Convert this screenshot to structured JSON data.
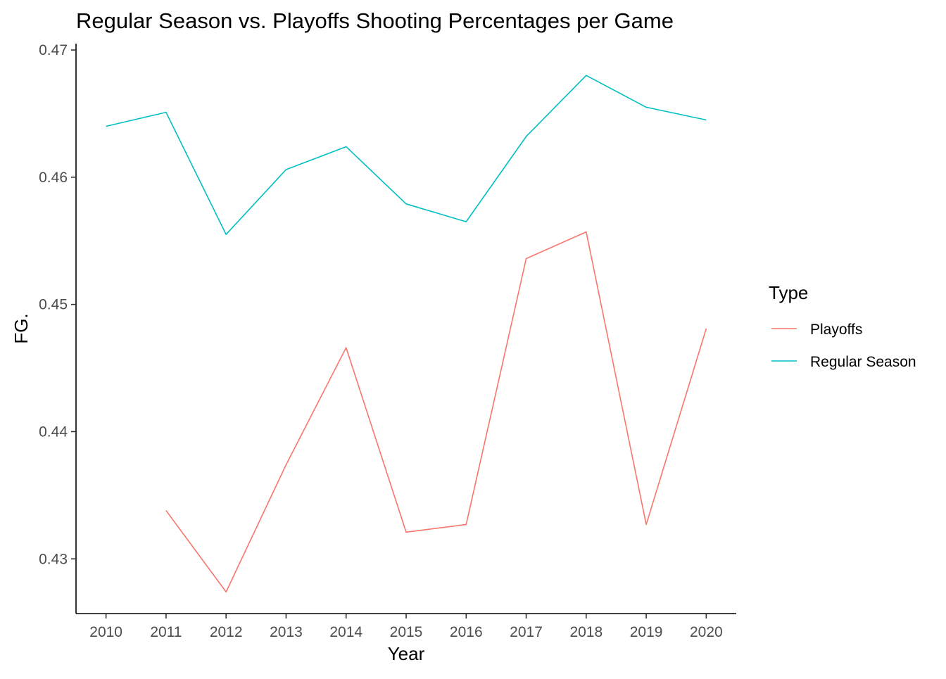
{
  "chart_data": {
    "type": "line",
    "title": "Regular Season vs. Playoffs Shooting Percentages per Game",
    "xlabel": "Year",
    "ylabel": "FG.",
    "x": [
      2010,
      2011,
      2012,
      2013,
      2014,
      2015,
      2016,
      2017,
      2018,
      2019,
      2020
    ],
    "xlim": [
      2009.5,
      2020.5
    ],
    "ylim": [
      0.4257,
      0.4705
    ],
    "yticks": [
      0.43,
      0.44,
      0.45,
      0.46,
      0.47
    ],
    "ytick_labels": [
      "0.43",
      "0.44",
      "0.45",
      "0.46",
      "0.47"
    ],
    "grid": false,
    "legend": {
      "title": "Type",
      "position": "right"
    },
    "series": [
      {
        "name": "Playoffs",
        "color": "#F8766D",
        "values": [
          null,
          0.4338,
          0.4274,
          0.4374,
          0.4466,
          0.4321,
          0.4327,
          0.4536,
          0.4557,
          0.4327,
          0.4481
        ]
      },
      {
        "name": "Regular Season",
        "color": "#00BFC4",
        "values": [
          0.464,
          0.4651,
          0.4555,
          0.4606,
          0.4624,
          0.4579,
          0.4565,
          0.4632,
          0.468,
          0.4655,
          0.4645
        ]
      }
    ]
  }
}
